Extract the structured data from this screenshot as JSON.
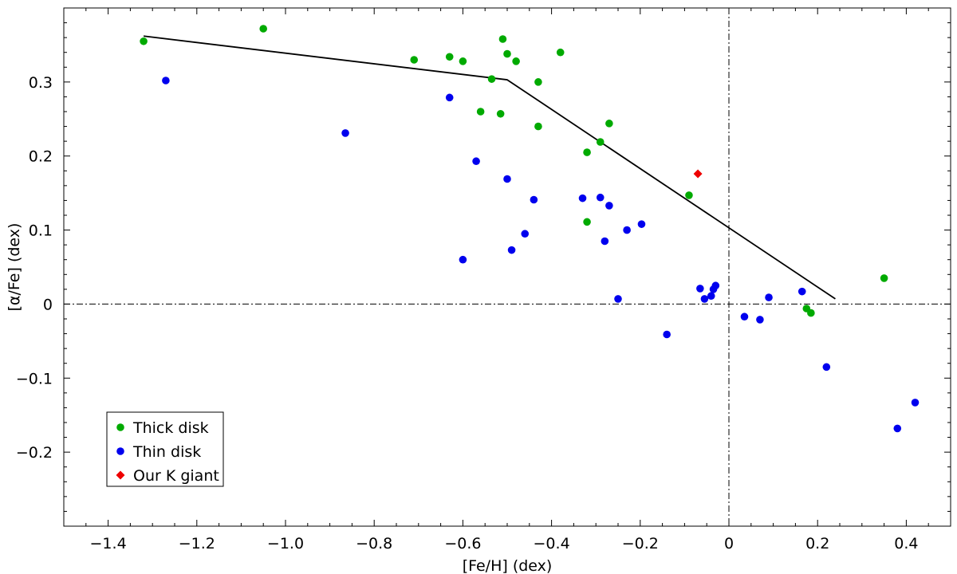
{
  "chart_data": {
    "type": "scatter",
    "xlabel": "[Fe/H] (dex)",
    "ylabel": "[α/Fe] (dex)",
    "xlim": [
      -1.5,
      0.5
    ],
    "ylim": [
      -0.3,
      0.4
    ],
    "x_ticks": [
      -1.4,
      -1.2,
      -1.0,
      -0.8,
      -0.6,
      -0.4,
      -0.2,
      0,
      0.2,
      0.4
    ],
    "x_tick_labels": [
      "−1.4",
      "−1.2",
      "−1.0",
      "−0.8",
      "−0.6",
      "−0.4",
      "−0.2",
      "0",
      "0.2",
      "0.4"
    ],
    "y_ticks": [
      -0.2,
      -0.1,
      0,
      0.1,
      0.2,
      0.3
    ],
    "y_tick_labels": [
      "−0.2",
      "−0.1",
      "0",
      "0.1",
      "0.2",
      "0.3"
    ],
    "reference_lines": {
      "x": 0,
      "y": 0,
      "style": "dash-dot"
    },
    "trend_line": [
      [
        -1.32,
        0.362
      ],
      [
        -0.5,
        0.303
      ],
      [
        0.24,
        0.007
      ]
    ],
    "legend_position": "bottom-left",
    "series": [
      {
        "name": "Thick disk",
        "marker": "circle",
        "color": "#00aa00",
        "points": [
          [
            -1.32,
            0.355
          ],
          [
            -1.05,
            0.372
          ],
          [
            -0.71,
            0.33
          ],
          [
            -0.63,
            0.334
          ],
          [
            -0.6,
            0.328
          ],
          [
            -0.51,
            0.358
          ],
          [
            -0.5,
            0.338
          ],
          [
            -0.48,
            0.328
          ],
          [
            -0.38,
            0.34
          ],
          [
            -0.535,
            0.304
          ],
          [
            -0.43,
            0.3
          ],
          [
            -0.56,
            0.26
          ],
          [
            -0.515,
            0.257
          ],
          [
            -0.43,
            0.24
          ],
          [
            -0.27,
            0.244
          ],
          [
            -0.29,
            0.219
          ],
          [
            -0.32,
            0.205
          ],
          [
            -0.09,
            0.147
          ],
          [
            -0.32,
            0.111
          ],
          [
            0.35,
            0.035
          ],
          [
            0.175,
            -0.006
          ],
          [
            0.185,
            -0.012
          ]
        ]
      },
      {
        "name": "Thin disk",
        "marker": "circle",
        "color": "#0000ee",
        "points": [
          [
            -1.27,
            0.302
          ],
          [
            -0.865,
            0.231
          ],
          [
            -0.63,
            0.279
          ],
          [
            -0.57,
            0.193
          ],
          [
            -0.5,
            0.169
          ],
          [
            -0.44,
            0.141
          ],
          [
            -0.46,
            0.095
          ],
          [
            -0.49,
            0.073
          ],
          [
            -0.6,
            0.06
          ],
          [
            -0.33,
            0.143
          ],
          [
            -0.29,
            0.144
          ],
          [
            -0.27,
            0.133
          ],
          [
            -0.28,
            0.085
          ],
          [
            -0.23,
            0.1
          ],
          [
            -0.197,
            0.108
          ],
          [
            -0.25,
            0.007
          ],
          [
            -0.14,
            -0.041
          ],
          [
            -0.065,
            0.021
          ],
          [
            -0.055,
            0.007
          ],
          [
            -0.04,
            0.011
          ],
          [
            -0.035,
            0.02
          ],
          [
            -0.03,
            0.025
          ],
          [
            0.035,
            -0.017
          ],
          [
            0.07,
            -0.021
          ],
          [
            0.09,
            0.009
          ],
          [
            0.165,
            0.017
          ],
          [
            0.22,
            -0.085
          ],
          [
            0.38,
            -0.168
          ],
          [
            0.42,
            -0.133
          ]
        ]
      },
      {
        "name": "Our K giant",
        "marker": "diamond",
        "color": "#ee0000",
        "points": [
          [
            -0.07,
            0.176
          ]
        ]
      }
    ]
  }
}
